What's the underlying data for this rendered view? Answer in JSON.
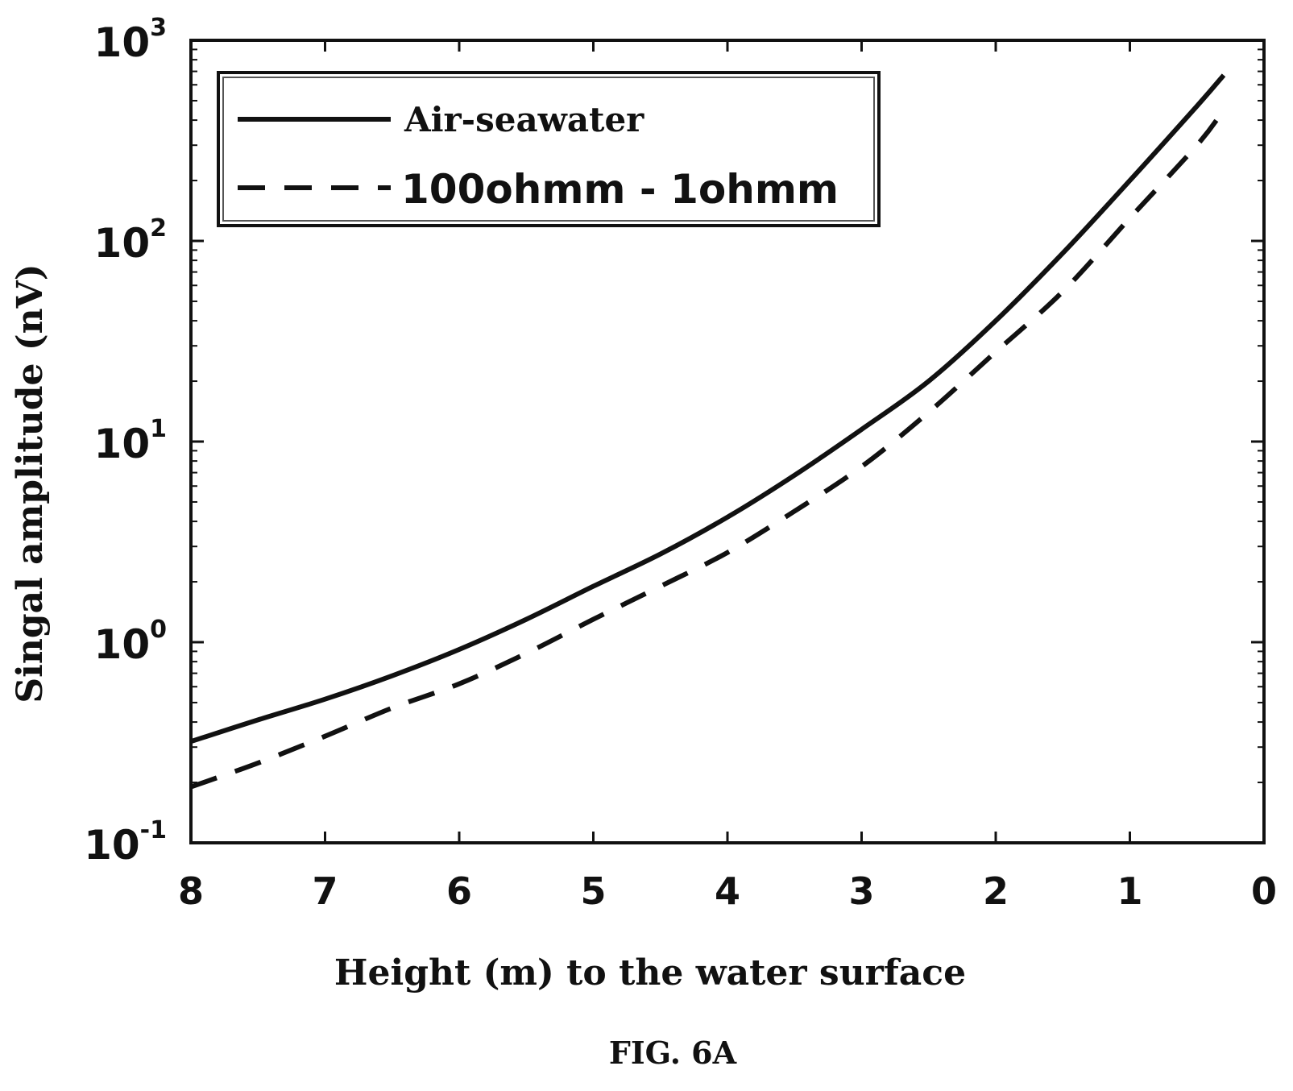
{
  "chart_data": {
    "type": "line",
    "title": "",
    "xlabel": "Height (m) to the water surface",
    "ylabel": "Singal amplitude (nV)",
    "x_reversed": true,
    "y_scale": "log",
    "xlim": [
      8,
      0
    ],
    "ylim": [
      0.1,
      1000
    ],
    "x_ticks": [
      "8",
      "7",
      "6",
      "5",
      "4",
      "3",
      "2",
      "1",
      "0"
    ],
    "y_ticks": [
      {
        "base": "10",
        "exp": "-1"
      },
      {
        "base": "10",
        "exp": "0"
      },
      {
        "base": "10",
        "exp": "1"
      },
      {
        "base": "10",
        "exp": "2"
      },
      {
        "base": "10",
        "exp": "3"
      }
    ],
    "legend_position": "top-left",
    "grid": false,
    "series": [
      {
        "name": "Air-seawater",
        "style": "solid",
        "x": [
          8,
          7.5,
          7,
          6.5,
          6,
          5.5,
          5,
          4.5,
          4,
          3.5,
          3,
          2.5,
          2,
          1.5,
          1,
          0.5,
          0.3
        ],
        "values": [
          0.32,
          0.41,
          0.52,
          0.68,
          0.92,
          1.3,
          1.9,
          2.75,
          4.2,
          6.8,
          11.5,
          20,
          40,
          87,
          200,
          470,
          670
        ]
      },
      {
        "name": "100ohmm - 1ohmm",
        "style": "dashed",
        "x": [
          8,
          7.5,
          7,
          6.5,
          6,
          5.5,
          5,
          4.5,
          4,
          3.5,
          3,
          2.5,
          2,
          1.5,
          1,
          0.5,
          0.3
        ],
        "values": [
          0.19,
          0.25,
          0.34,
          0.47,
          0.62,
          0.88,
          1.3,
          1.9,
          2.8,
          4.5,
          7.5,
          14,
          28,
          56,
          130,
          300,
          450
        ]
      }
    ]
  },
  "figure_caption": "FIG. 6A"
}
